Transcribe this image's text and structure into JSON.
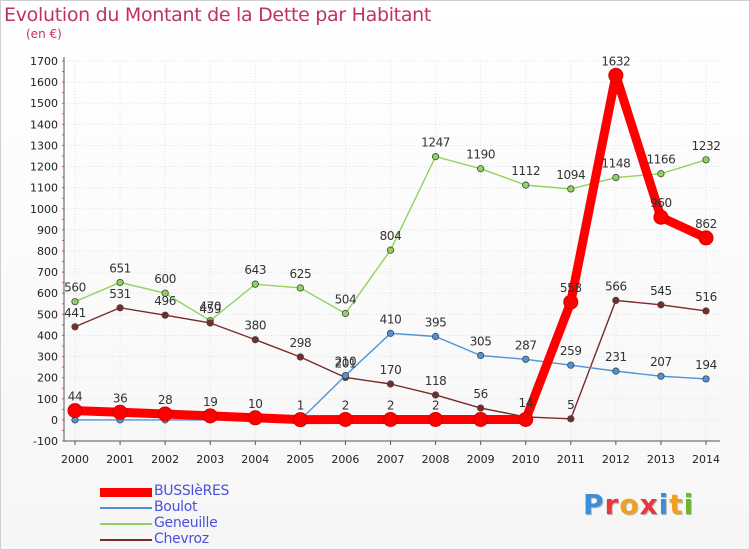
{
  "header": {
    "title": "Evolution du Montant de la Dette par Habitant",
    "unit": "(en €)"
  },
  "logo": {
    "text": "Proxiti",
    "colors": [
      "#3a8fd8",
      "#e8383d",
      "#f0a020",
      "#e8383d",
      "#3a8fd8",
      "#f0a020",
      "#6ab82e"
    ]
  },
  "chart_data": {
    "type": "line",
    "title": "Evolution du Montant de la Dette par Habitant",
    "ylabel": "(en €)",
    "xlabel": "",
    "ylim": [
      -100,
      1700
    ],
    "y_ticks": [
      -100,
      0,
      100,
      200,
      300,
      400,
      500,
      600,
      700,
      800,
      900,
      1000,
      1100,
      1200,
      1300,
      1400,
      1500,
      1600,
      1700
    ],
    "grid": true,
    "legend_position": "bottom-left",
    "categories": [
      "2000",
      "2001",
      "2002",
      "2003",
      "2004",
      "2005",
      "2006",
      "2007",
      "2008",
      "2009",
      "2010",
      "2011",
      "2012",
      "2013",
      "2014"
    ],
    "series": [
      {
        "name": "Geneuille",
        "color": "#8fd45a",
        "values": [
          560,
          651,
          600,
          470,
          643,
          625,
          504,
          804,
          1247,
          1190,
          1112,
          1094,
          1148,
          1166,
          1232
        ],
        "labels": [
          "560",
          "651",
          "600",
          "470",
          "643",
          "625",
          "504",
          "804",
          "1247",
          "1190",
          "1112",
          "1094",
          "1148",
          "1166",
          "1232"
        ]
      },
      {
        "name": "Chevroz",
        "color": "#7a2a2a",
        "values": [
          441,
          531,
          496,
          459,
          380,
          298,
          201,
          170,
          118,
          56,
          14,
          5,
          566,
          545,
          516
        ],
        "labels": [
          "441",
          "531",
          "496",
          "459",
          "380",
          "298",
          "201",
          "170",
          "118",
          "56",
          "14",
          "5",
          "566",
          "545",
          "516"
        ]
      },
      {
        "name": "Boulot",
        "color": "#4f93d6",
        "values": [
          0,
          0,
          0,
          0,
          0,
          0,
          210,
          410,
          395,
          305,
          287,
          259,
          231,
          207,
          194
        ],
        "labels": [
          "",
          "",
          "",
          "",
          "",
          "",
          "210",
          "410",
          "395",
          "305",
          "287",
          "259",
          "231",
          "207",
          "194"
        ]
      },
      {
        "name": "BUSSIèRES",
        "color": "#ff0000",
        "values": [
          44,
          36,
          28,
          19,
          10,
          1,
          2,
          2,
          2,
          2,
          2,
          558,
          1632,
          960,
          862
        ],
        "labels": [
          "44",
          "36",
          "28",
          "19",
          "10",
          "1",
          "2",
          "2",
          "2",
          "",
          "",
          "558",
          "1632",
          "960",
          "862"
        ]
      }
    ],
    "legend": [
      "BUSSIèRES",
      "Boulot",
      "Geneuille",
      "Chevroz"
    ]
  }
}
